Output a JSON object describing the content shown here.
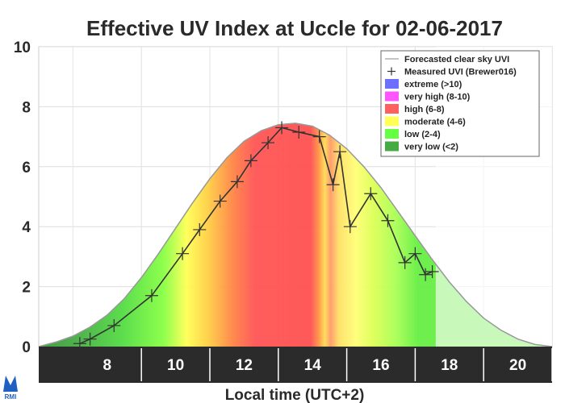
{
  "chart_data": {
    "type": "area",
    "title": "Effective UV Index at Uccle for 02-06-2017",
    "xlabel": "Local time (UTC+2)",
    "ylabel": "",
    "xlim": [
      6.0,
      21.0
    ],
    "ylim": [
      0,
      10
    ],
    "xticks": [
      "8",
      "10",
      "12",
      "14",
      "16",
      "18",
      "20"
    ],
    "yticks": [
      "0",
      "2",
      "4",
      "6",
      "8",
      "10"
    ],
    "grid": true,
    "legend_position": "top-right",
    "legend": [
      {
        "label": "Forecasted clear sky UVI",
        "kind": "line",
        "color": "#b0b0b0"
      },
      {
        "label": "Measured UVI (Brewer016)",
        "kind": "marker",
        "symbol": "+"
      },
      {
        "label": "extreme (>10)",
        "kind": "swatch",
        "color": "#6f6fff"
      },
      {
        "label": "very high (8-10)",
        "kind": "swatch",
        "color": "#ff55ff"
      },
      {
        "label": "high (6-8)",
        "kind": "swatch",
        "color": "#ff6060"
      },
      {
        "label": "moderate (4-6)",
        "kind": "swatch",
        "color": "#ffff55"
      },
      {
        "label": "low (2-4)",
        "kind": "swatch",
        "color": "#66ff44"
      },
      {
        "label": "very low (<2)",
        "kind": "swatch",
        "color": "#44aa44"
      }
    ],
    "clear_sky": {
      "name": "Forecasted clear sky UVI",
      "x": [
        6.0,
        6.5,
        7.0,
        7.5,
        8.0,
        8.5,
        9.0,
        9.5,
        10.0,
        10.5,
        11.0,
        11.5,
        12.0,
        12.5,
        13.0,
        13.5,
        14.0,
        14.5,
        15.0,
        15.5,
        16.0,
        16.5,
        17.0,
        17.5,
        18.0,
        18.5,
        19.0,
        19.5,
        20.0,
        20.5,
        21.0
      ],
      "y": [
        0.0,
        0.15,
        0.35,
        0.65,
        1.05,
        1.6,
        2.3,
        3.1,
        3.95,
        4.8,
        5.6,
        6.3,
        6.85,
        7.2,
        7.4,
        7.45,
        7.35,
        7.05,
        6.6,
        6.0,
        5.3,
        4.5,
        3.7,
        2.9,
        2.15,
        1.5,
        0.95,
        0.55,
        0.25,
        0.07,
        0.0
      ]
    },
    "measured": {
      "name": "Measured UVI (Brewer016)",
      "x": [
        7.2,
        7.5,
        8.2,
        9.3,
        10.2,
        10.7,
        11.3,
        11.8,
        12.2,
        12.7,
        13.1,
        13.6,
        14.2,
        14.6,
        14.8,
        15.1,
        15.7,
        16.2,
        16.7,
        17.0,
        17.3,
        17.5
      ],
      "y": [
        0.1,
        0.25,
        0.7,
        1.7,
        3.1,
        3.9,
        4.85,
        5.5,
        6.2,
        6.8,
        7.3,
        7.15,
        7.0,
        5.4,
        6.5,
        4.0,
        5.1,
        4.2,
        2.8,
        3.1,
        2.4,
        2.5
      ]
    },
    "colors": {
      "very_low": "#44aa44",
      "low": "#66ff44",
      "moderate": "#ffff55",
      "high": "#ff6060",
      "very_high": "#ff55ff",
      "extreme": "#6f6fff",
      "axis_band": "#2b2b2b"
    }
  },
  "logo": {
    "text": "RMI"
  }
}
